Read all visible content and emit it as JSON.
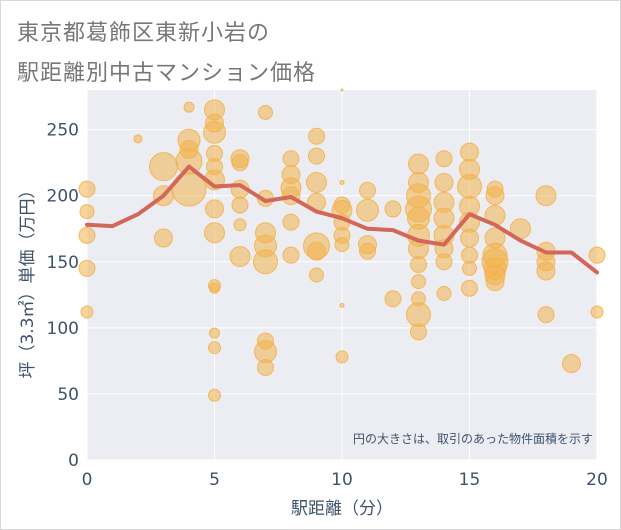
{
  "title_lines": [
    "東京都葛飾区東新小岩の",
    "駅距離別中古マンション価格"
  ],
  "colors": {
    "bubble": "#f3b24d",
    "trend_line": "#d2675a",
    "plot_bg": "#ecedf3",
    "grid": "#ffffff",
    "axis_text": "#3e536b"
  },
  "chart_data": {
    "type": "scatter",
    "title": "東京都葛飾区東新小岩の駅距離別中古マンション価格",
    "xlabel": "駅距離（分）",
    "ylabel": "坪（3.3㎡）単価（万円）",
    "xlim": [
      0,
      20
    ],
    "ylim": [
      0,
      280
    ],
    "x_ticks": [
      0,
      5,
      10,
      15,
      20
    ],
    "y_ticks": [
      0,
      50,
      100,
      150,
      200,
      250
    ],
    "grid": true,
    "annotation": "円の大きさは、取引のあった物件面積を示す",
    "series": [
      {
        "kind": "bubble",
        "points": [
          [
            0,
            205,
            8
          ],
          [
            0,
            188,
            7
          ],
          [
            0,
            170,
            8
          ],
          [
            0,
            145,
            8
          ],
          [
            0,
            112,
            6
          ],
          [
            2,
            243,
            4
          ],
          [
            3,
            222,
            14
          ],
          [
            3,
            200,
            10
          ],
          [
            3,
            168,
            9
          ],
          [
            4,
            267,
            5
          ],
          [
            4,
            242,
            11
          ],
          [
            4,
            235,
            9
          ],
          [
            4,
            226,
            13
          ],
          [
            4,
            205,
            17
          ],
          [
            5,
            265,
            10
          ],
          [
            5,
            255,
            9
          ],
          [
            5,
            248,
            11
          ],
          [
            5,
            232,
            8
          ],
          [
            5,
            222,
            8
          ],
          [
            5,
            212,
            10
          ],
          [
            5,
            190,
            9
          ],
          [
            5,
            172,
            10
          ],
          [
            5,
            132,
            6
          ],
          [
            5,
            130,
            5
          ],
          [
            5,
            96,
            5
          ],
          [
            5,
            85,
            6
          ],
          [
            5,
            49,
            6
          ],
          [
            6,
            228,
            9
          ],
          [
            6,
            225,
            8
          ],
          [
            6,
            205,
            9
          ],
          [
            6,
            193,
            8
          ],
          [
            6,
            178,
            6
          ],
          [
            6,
            154,
            10
          ],
          [
            7,
            263,
            7
          ],
          [
            7,
            198,
            8
          ],
          [
            7,
            172,
            10
          ],
          [
            7,
            162,
            11
          ],
          [
            7,
            150,
            12
          ],
          [
            7,
            90,
            8
          ],
          [
            7,
            82,
            11
          ],
          [
            7,
            70,
            8
          ],
          [
            8,
            228,
            8
          ],
          [
            8,
            216,
            9
          ],
          [
            8,
            206,
            10
          ],
          [
            8,
            200,
            9
          ],
          [
            8,
            180,
            8
          ],
          [
            8,
            155,
            8
          ],
          [
            9,
            245,
            8
          ],
          [
            9,
            230,
            8
          ],
          [
            9,
            210,
            10
          ],
          [
            9,
            195,
            9
          ],
          [
            9,
            162,
            13
          ],
          [
            9,
            158,
            9
          ],
          [
            9,
            140,
            7
          ],
          [
            10,
            280,
            1
          ],
          [
            10,
            210,
            2
          ],
          [
            10,
            193,
            8
          ],
          [
            10,
            189,
            10
          ],
          [
            10,
            180,
            8
          ],
          [
            10,
            170,
            8
          ],
          [
            10,
            163,
            7
          ],
          [
            10,
            117,
            2
          ],
          [
            10,
            78,
            6
          ],
          [
            11,
            204,
            8
          ],
          [
            11,
            189,
            11
          ],
          [
            11,
            163,
            9
          ],
          [
            11,
            158,
            8
          ],
          [
            12,
            190,
            8
          ],
          [
            12,
            122,
            8
          ],
          [
            13,
            224,
            10
          ],
          [
            13,
            210,
            10
          ],
          [
            13,
            200,
            12
          ],
          [
            13,
            190,
            13
          ],
          [
            13,
            183,
            11
          ],
          [
            13,
            170,
            11
          ],
          [
            13,
            160,
            10
          ],
          [
            13,
            148,
            8
          ],
          [
            13,
            135,
            7
          ],
          [
            13,
            122,
            7
          ],
          [
            13,
            110,
            12
          ],
          [
            13,
            97,
            8
          ],
          [
            14,
            228,
            8
          ],
          [
            14,
            210,
            9
          ],
          [
            14,
            195,
            10
          ],
          [
            14,
            183,
            10
          ],
          [
            14,
            170,
            10
          ],
          [
            14,
            160,
            9
          ],
          [
            14,
            150,
            8
          ],
          [
            14,
            126,
            7
          ],
          [
            15,
            233,
            9
          ],
          [
            15,
            220,
            10
          ],
          [
            15,
            207,
            12
          ],
          [
            15,
            192,
            10
          ],
          [
            15,
            180,
            10
          ],
          [
            15,
            168,
            9
          ],
          [
            15,
            155,
            8
          ],
          [
            15,
            145,
            7
          ],
          [
            15,
            130,
            8
          ],
          [
            16,
            205,
            8
          ],
          [
            16,
            200,
            9
          ],
          [
            16,
            185,
            10
          ],
          [
            16,
            168,
            10
          ],
          [
            16,
            155,
            12
          ],
          [
            16,
            150,
            13
          ],
          [
            16,
            145,
            11
          ],
          [
            16,
            140,
            10
          ],
          [
            16,
            135,
            9
          ],
          [
            17,
            175,
            10
          ],
          [
            18,
            200,
            10
          ],
          [
            18,
            158,
            9
          ],
          [
            18,
            150,
            9
          ],
          [
            18,
            143,
            9
          ],
          [
            18,
            110,
            8
          ],
          [
            19,
            73,
            9
          ],
          [
            20,
            155,
            8
          ],
          [
            20,
            112,
            6
          ]
        ]
      },
      {
        "kind": "line",
        "x": [
          0,
          1,
          2,
          3,
          4,
          5,
          6,
          7,
          8,
          9,
          10,
          11,
          12,
          13,
          14,
          15,
          16,
          17,
          18,
          19,
          20
        ],
        "y": [
          178,
          177,
          186,
          200,
          222,
          207,
          208,
          196,
          199,
          188,
          183,
          175,
          174,
          166,
          163,
          186,
          178,
          166,
          157,
          157,
          142
        ]
      }
    ]
  }
}
